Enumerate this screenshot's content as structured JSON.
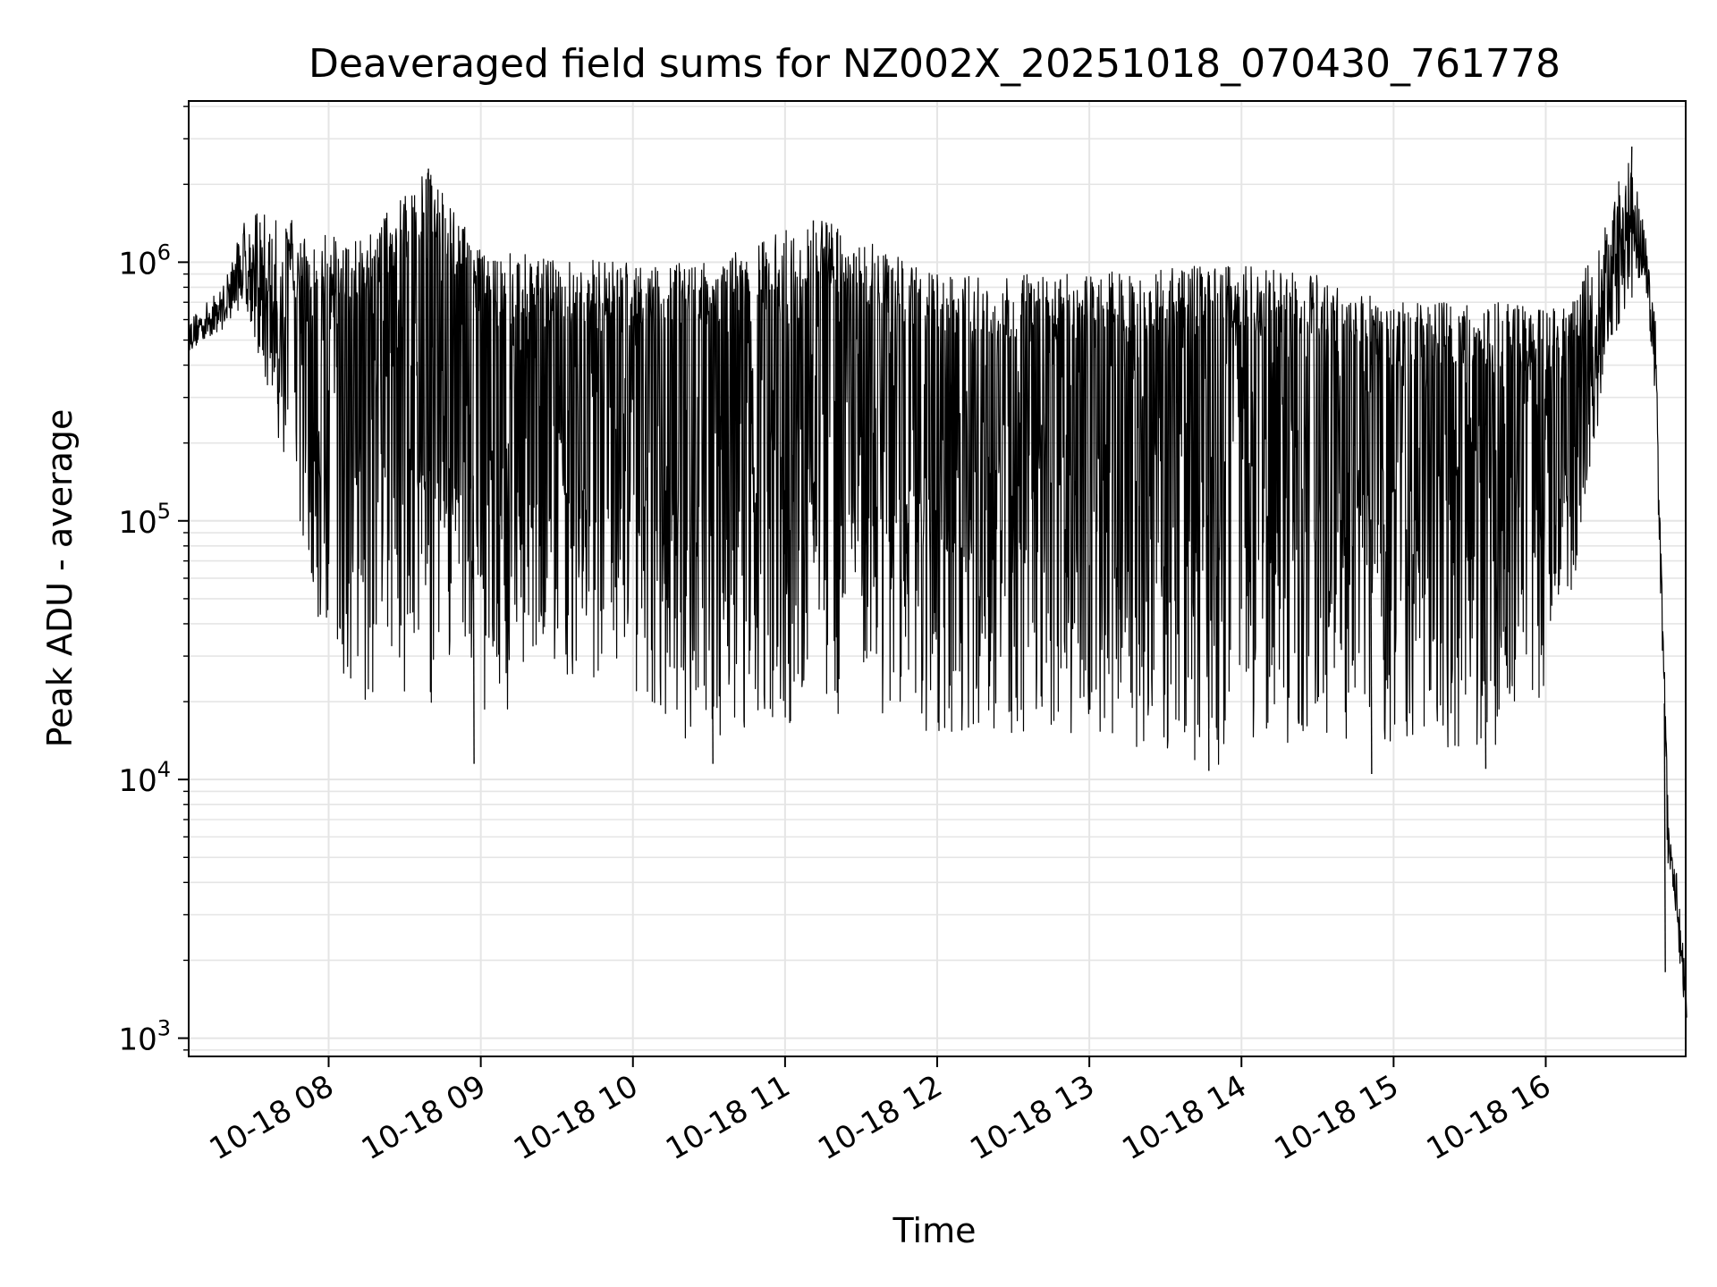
{
  "chart_data": {
    "type": "line",
    "title": "Deaveraged field sums for NZ002X_20251018_070430_761778",
    "xlabel": "Time",
    "ylabel": "Peak ADU - average",
    "yscale": "log",
    "ylim": [
      850,
      4200000
    ],
    "xlim_hours": [
      7.08,
      16.92
    ],
    "grid": true,
    "line_color": "#000000",
    "x_ticks": [
      {
        "hour": 8,
        "label": "10-18 08"
      },
      {
        "hour": 9,
        "label": "10-18 09"
      },
      {
        "hour": 10,
        "label": "10-18 10"
      },
      {
        "hour": 11,
        "label": "10-18 11"
      },
      {
        "hour": 12,
        "label": "10-18 12"
      },
      {
        "hour": 13,
        "label": "10-18 13"
      },
      {
        "hour": 14,
        "label": "10-18 14"
      },
      {
        "hour": 15,
        "label": "10-18 15"
      },
      {
        "hour": 16,
        "label": "10-18 16"
      }
    ],
    "y_ticks": [
      {
        "value": 1000,
        "base": "10",
        "exp": "3"
      },
      {
        "value": 10000,
        "base": "10",
        "exp": "4"
      },
      {
        "value": 100000,
        "base": "10",
        "exp": "5"
      },
      {
        "value": 1000000,
        "base": "10",
        "exp": "6"
      }
    ],
    "series": [
      {
        "name": "field sums",
        "description": "dense oscillating signal; upper and lower envelope per time (hours)",
        "envelope": [
          {
            "hour": 7.08,
            "upper": 600000,
            "lower": 450000
          },
          {
            "hour": 7.3,
            "upper": 800000,
            "lower": 550000
          },
          {
            "hour": 7.45,
            "upper": 1500000,
            "lower": 700000
          },
          {
            "hour": 7.6,
            "upper": 1600000,
            "lower": 300000
          },
          {
            "hour": 7.75,
            "upper": 1500000,
            "lower": 120000
          },
          {
            "hour": 7.9,
            "upper": 1300000,
            "lower": 40000
          },
          {
            "hour": 8.2,
            "upper": 1200000,
            "lower": 20000
          },
          {
            "hour": 8.65,
            "upper": 2300000,
            "lower": 20000
          },
          {
            "hour": 9.0,
            "upper": 1100000,
            "lower": 18000
          },
          {
            "hour": 10.0,
            "upper": 1000000,
            "lower": 20000
          },
          {
            "hour": 10.5,
            "upper": 1000000,
            "lower": 12000
          },
          {
            "hour": 11.2,
            "upper": 1500000,
            "lower": 18000
          },
          {
            "hour": 12.0,
            "upper": 900000,
            "lower": 15000
          },
          {
            "hour": 13.0,
            "upper": 900000,
            "lower": 15000
          },
          {
            "hour": 13.8,
            "upper": 1000000,
            "lower": 11000
          },
          {
            "hour": 14.5,
            "upper": 900000,
            "lower": 15000
          },
          {
            "hour": 15.0,
            "upper": 700000,
            "lower": 13000
          },
          {
            "hour": 15.7,
            "upper": 700000,
            "lower": 13000
          },
          {
            "hour": 16.0,
            "upper": 650000,
            "lower": 20000
          },
          {
            "hour": 16.2,
            "upper": 800000,
            "lower": 60000
          },
          {
            "hour": 16.4,
            "upper": 1500000,
            "lower": 400000
          },
          {
            "hour": 16.55,
            "upper": 2700000,
            "lower": 700000
          },
          {
            "hour": 16.65,
            "upper": 1400000,
            "lower": 900000
          },
          {
            "hour": 16.72,
            "upper": 600000,
            "lower": 300000
          },
          {
            "hour": 16.8,
            "upper": 10000,
            "lower": 5000
          },
          {
            "hour": 16.92,
            "upper": 2000,
            "lower": 1200
          }
        ],
        "notable_points": [
          {
            "hour": 8.65,
            "value": 2300000
          },
          {
            "hour": 8.95,
            "value": 11500
          },
          {
            "hour": 10.52,
            "value": 11500
          },
          {
            "hour": 11.18,
            "value": 1450000
          },
          {
            "hour": 13.78,
            "value": 10800
          },
          {
            "hour": 14.85,
            "value": 10500
          },
          {
            "hour": 15.6,
            "value": 11000
          },
          {
            "hour": 16.56,
            "value": 2800000
          },
          {
            "hour": 16.78,
            "value": 1800
          },
          {
            "hour": 16.92,
            "value": 1200
          }
        ]
      }
    ]
  }
}
